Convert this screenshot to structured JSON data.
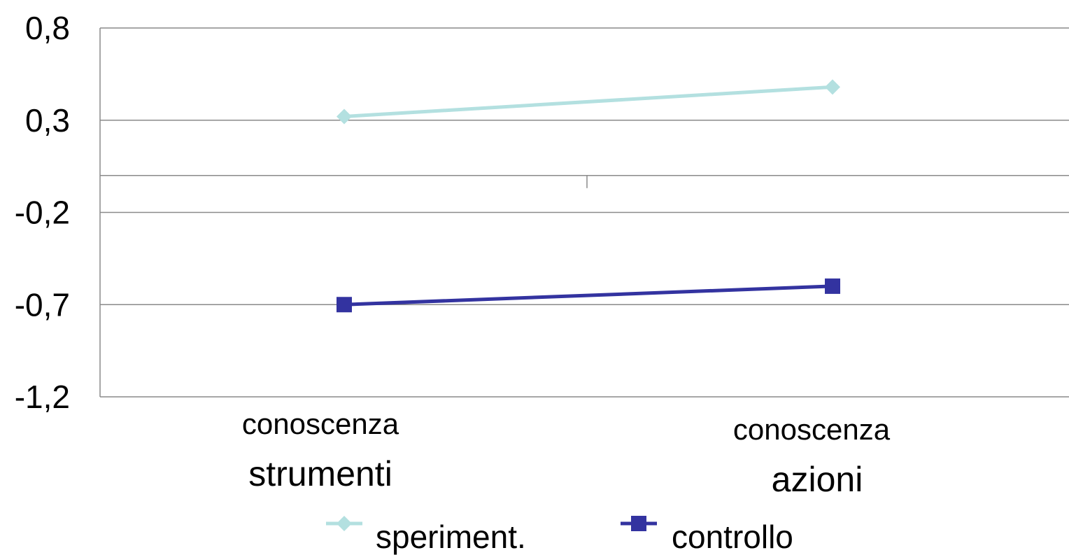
{
  "chart_data": {
    "type": "line",
    "categories": [
      [
        "conoscenza",
        "strumenti"
      ],
      [
        "conoscenza",
        "azioni"
      ]
    ],
    "series": [
      {
        "name": "speriment.",
        "values": [
          0.32,
          0.48
        ],
        "color": "#b3e0e0",
        "marker": "diamond"
      },
      {
        "name": "controllo",
        "values": [
          -0.7,
          -0.6
        ],
        "color": "#3333a0",
        "marker": "square"
      }
    ],
    "yticks": [
      0.8,
      0.3,
      -0.2,
      -0.7,
      -1.2
    ],
    "ytick_labels": [
      "0,8",
      "0,3",
      "-0,2",
      "-0,7",
      "-1,2"
    ],
    "ylim": [
      -1.2,
      0.8
    ],
    "grid": true,
    "legend_position": "bottom",
    "title": "",
    "xlabel": "",
    "ylabel": ""
  }
}
